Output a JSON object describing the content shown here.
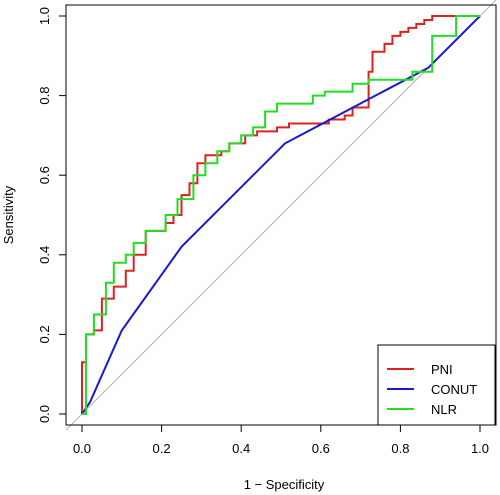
{
  "chart_data": {
    "type": "line",
    "title": "",
    "xlabel": "1 − Specificity",
    "ylabel": "Sensitivity",
    "xlim": [
      0,
      1
    ],
    "ylim": [
      0,
      1
    ],
    "x_ticks": [
      "0.0",
      "0.2",
      "0.4",
      "0.6",
      "0.8",
      "1.0"
    ],
    "y_ticks": [
      "0.0",
      "0.2",
      "0.4",
      "0.6",
      "0.8",
      "1.0"
    ],
    "legend_position": "bottom-right",
    "reference_line": {
      "x": [
        0,
        1
      ],
      "y": [
        0,
        1
      ],
      "color": "#b0b0b0"
    },
    "series": [
      {
        "name": "PNI",
        "color": "#dd2222",
        "x": [
          0,
          0,
          0.01,
          0.01,
          0.03,
          0.03,
          0.05,
          0.05,
          0.08,
          0.08,
          0.11,
          0.11,
          0.13,
          0.13,
          0.16,
          0.16,
          0.21,
          0.21,
          0.23,
          0.23,
          0.25,
          0.25,
          0.27,
          0.27,
          0.29,
          0.29,
          0.31,
          0.31,
          0.35,
          0.35,
          0.37,
          0.37,
          0.41,
          0.41,
          0.44,
          0.44,
          0.49,
          0.49,
          0.52,
          0.52,
          0.62,
          0.62,
          0.66,
          0.66,
          0.68,
          0.68,
          0.72,
          0.72,
          0.73,
          0.73,
          0.76,
          0.76,
          0.78,
          0.78,
          0.8,
          0.8,
          0.82,
          0.82,
          0.84,
          0.84,
          0.86,
          0.86,
          0.88,
          0.88,
          0.97,
          1.0
        ],
        "y": [
          0,
          0.13,
          0.13,
          0.2,
          0.2,
          0.21,
          0.21,
          0.29,
          0.29,
          0.32,
          0.32,
          0.36,
          0.36,
          0.4,
          0.4,
          0.46,
          0.46,
          0.48,
          0.48,
          0.5,
          0.5,
          0.55,
          0.55,
          0.58,
          0.58,
          0.63,
          0.63,
          0.65,
          0.65,
          0.66,
          0.66,
          0.68,
          0.68,
          0.7,
          0.7,
          0.71,
          0.71,
          0.72,
          0.72,
          0.73,
          0.73,
          0.74,
          0.74,
          0.75,
          0.75,
          0.77,
          0.77,
          0.86,
          0.86,
          0.91,
          0.91,
          0.93,
          0.93,
          0.95,
          0.95,
          0.96,
          0.96,
          0.97,
          0.97,
          0.98,
          0.98,
          0.99,
          0.99,
          1.0,
          1.0,
          1.0
        ]
      },
      {
        "name": "CONUT",
        "color": "#1a1acc",
        "x": [
          0,
          0.02,
          0.1,
          0.25,
          0.51,
          0.87,
          1.0
        ],
        "y": [
          0,
          0.03,
          0.21,
          0.42,
          0.68,
          0.87,
          1.0
        ]
      },
      {
        "name": "NLR",
        "color": "#22dd22",
        "x": [
          0,
          0.01,
          0.01,
          0.03,
          0.03,
          0.06,
          0.06,
          0.08,
          0.08,
          0.11,
          0.11,
          0.13,
          0.13,
          0.16,
          0.16,
          0.21,
          0.21,
          0.24,
          0.24,
          0.28,
          0.28,
          0.31,
          0.31,
          0.34,
          0.34,
          0.37,
          0.37,
          0.4,
          0.4,
          0.43,
          0.43,
          0.46,
          0.46,
          0.49,
          0.49,
          0.52,
          0.52,
          0.58,
          0.58,
          0.61,
          0.61,
          0.68,
          0.68,
          0.72,
          0.72,
          0.83,
          0.83,
          0.88,
          0.88,
          0.94,
          0.94,
          1.0
        ],
        "y": [
          0,
          0,
          0.2,
          0.2,
          0.25,
          0.25,
          0.33,
          0.33,
          0.38,
          0.38,
          0.4,
          0.4,
          0.43,
          0.43,
          0.46,
          0.46,
          0.5,
          0.5,
          0.54,
          0.54,
          0.6,
          0.6,
          0.63,
          0.63,
          0.66,
          0.66,
          0.68,
          0.68,
          0.7,
          0.7,
          0.72,
          0.72,
          0.76,
          0.76,
          0.78,
          0.78,
          0.78,
          0.78,
          0.8,
          0.8,
          0.81,
          0.81,
          0.83,
          0.83,
          0.84,
          0.84,
          0.86,
          0.86,
          0.95,
          0.95,
          1.0,
          1.0
        ]
      }
    ]
  }
}
